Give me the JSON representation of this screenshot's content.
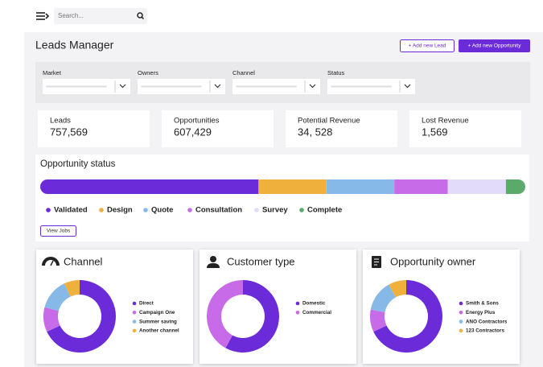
{
  "header": {
    "search_placeholder": "Search..."
  },
  "title": "Leads Manager",
  "actions": [
    "+ Add new Lead",
    "+ Add new Opportunity"
  ],
  "filters": [
    "Market",
    "Owners",
    "Channel",
    "Status"
  ],
  "kpis": [
    {
      "label": "Leads",
      "value": "757,569"
    },
    {
      "label": "Opportunities",
      "value": "607,429"
    },
    {
      "label": "Potential Revenue",
      "value": "34, 528"
    },
    {
      "label": "Lost Revenue",
      "value": "1,569"
    }
  ],
  "opportunity_status": {
    "type": "bar",
    "title": "Opportunity status",
    "button": "View Jobs",
    "series": [
      {
        "name": "Validated",
        "color": "#6c2bd9",
        "value": 45
      },
      {
        "name": "Design",
        "color": "#f0b03c",
        "value": 14
      },
      {
        "name": "Quote",
        "color": "#86b8e8",
        "value": 14
      },
      {
        "name": "Consultation",
        "color": "#c86be8",
        "value": 11
      },
      {
        "name": "Survey",
        "color": "#e2dcfa",
        "value": 12
      },
      {
        "name": "Complete",
        "color": "#5aab6b",
        "value": 4
      }
    ]
  },
  "donuts": [
    {
      "type": "pie",
      "title": "Channel",
      "series": [
        {
          "name": "Direct",
          "color": "#6c2bd9",
          "value": 68
        },
        {
          "name": "Campaign One",
          "color": "#c86be8",
          "value": 11
        },
        {
          "name": "Summer saving",
          "color": "#86b8e8",
          "value": 14
        },
        {
          "name": "Another channel",
          "color": "#f0b03c",
          "value": 7
        }
      ]
    },
    {
      "type": "pie",
      "title": "Customer type",
      "series": [
        {
          "name": "Domestic",
          "color": "#6c2bd9",
          "value": 58
        },
        {
          "name": "Commercial",
          "color": "#c86be8",
          "value": 42
        }
      ]
    },
    {
      "type": "pie",
      "title": "Opportunity owner",
      "series": [
        {
          "name": "Smith & Sons",
          "color": "#6c2bd9",
          "value": 68
        },
        {
          "name": "Energy Plus",
          "color": "#c86be8",
          "value": 10
        },
        {
          "name": "ANO Contractors",
          "color": "#86b8e8",
          "value": 14
        },
        {
          "name": "123 Contractors",
          "color": "#f0b03c",
          "value": 8
        }
      ]
    }
  ]
}
